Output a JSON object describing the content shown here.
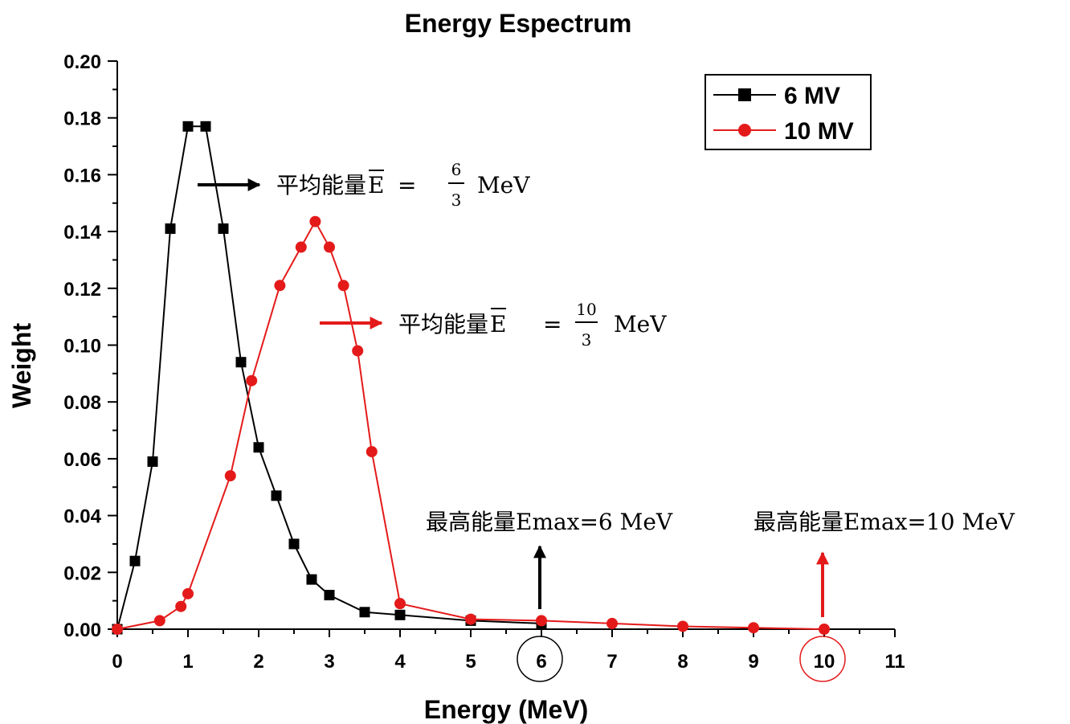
{
  "chart_data": {
    "type": "line",
    "title": "Energy Espectrum",
    "xlabel": "Energy (MeV)",
    "ylabel": "Weight",
    "xlim": [
      0,
      11
    ],
    "ylim": [
      0,
      0.2
    ],
    "xticks": [
      "0",
      "1",
      "2",
      "3",
      "4",
      "5",
      "6",
      "7",
      "8",
      "9",
      "10",
      "11"
    ],
    "yticks": [
      "0.00",
      "0.02",
      "0.04",
      "0.06",
      "0.08",
      "0.10",
      "0.12",
      "0.14",
      "0.16",
      "0.18",
      "0.20"
    ],
    "legend_position": "top-right",
    "series": [
      {
        "name": "6 MV",
        "color": "#000000",
        "marker": "square",
        "x": [
          0,
          0.25,
          0.5,
          0.75,
          1.0,
          1.25,
          1.5,
          1.75,
          2.0,
          2.25,
          2.5,
          2.75,
          3.0,
          3.5,
          4.0,
          5.0,
          6.0
        ],
        "y": [
          0.0,
          0.024,
          0.059,
          0.141,
          0.177,
          0.177,
          0.141,
          0.094,
          0.064,
          0.047,
          0.03,
          0.0175,
          0.012,
          0.006,
          0.005,
          0.003,
          0.002
        ]
      },
      {
        "name": "10 MV",
        "color": "#e41a1a",
        "marker": "circle",
        "x": [
          0,
          0.6,
          0.9,
          1.0,
          1.6,
          1.9,
          2.3,
          2.6,
          2.8,
          3.0,
          3.2,
          3.4,
          3.6,
          4.0,
          5.0,
          6.0,
          7.0,
          8.0,
          9.0,
          10.0
        ],
        "y": [
          0.0,
          0.003,
          0.008,
          0.0125,
          0.054,
          0.0875,
          0.121,
          0.1345,
          0.1435,
          0.1345,
          0.121,
          0.098,
          0.0625,
          0.009,
          0.0035,
          0.003,
          0.002,
          0.001,
          0.0005,
          0.0
        ]
      }
    ],
    "annotations": {
      "mean_6": {
        "prefix": "平均能量",
        "symbol": "E",
        "eq": "=",
        "num": "6",
        "den": "3",
        "unit": "MeV"
      },
      "mean_10": {
        "prefix": "平均能量",
        "symbol": "E",
        "eq": "=",
        "num": "10",
        "den": "3",
        "unit": "MeV"
      },
      "max_6": "最高能量Emax=6 MeV",
      "max_10": "最高能量Emax=10 MeV"
    },
    "highlighted_ticks": [
      "6",
      "10"
    ]
  }
}
